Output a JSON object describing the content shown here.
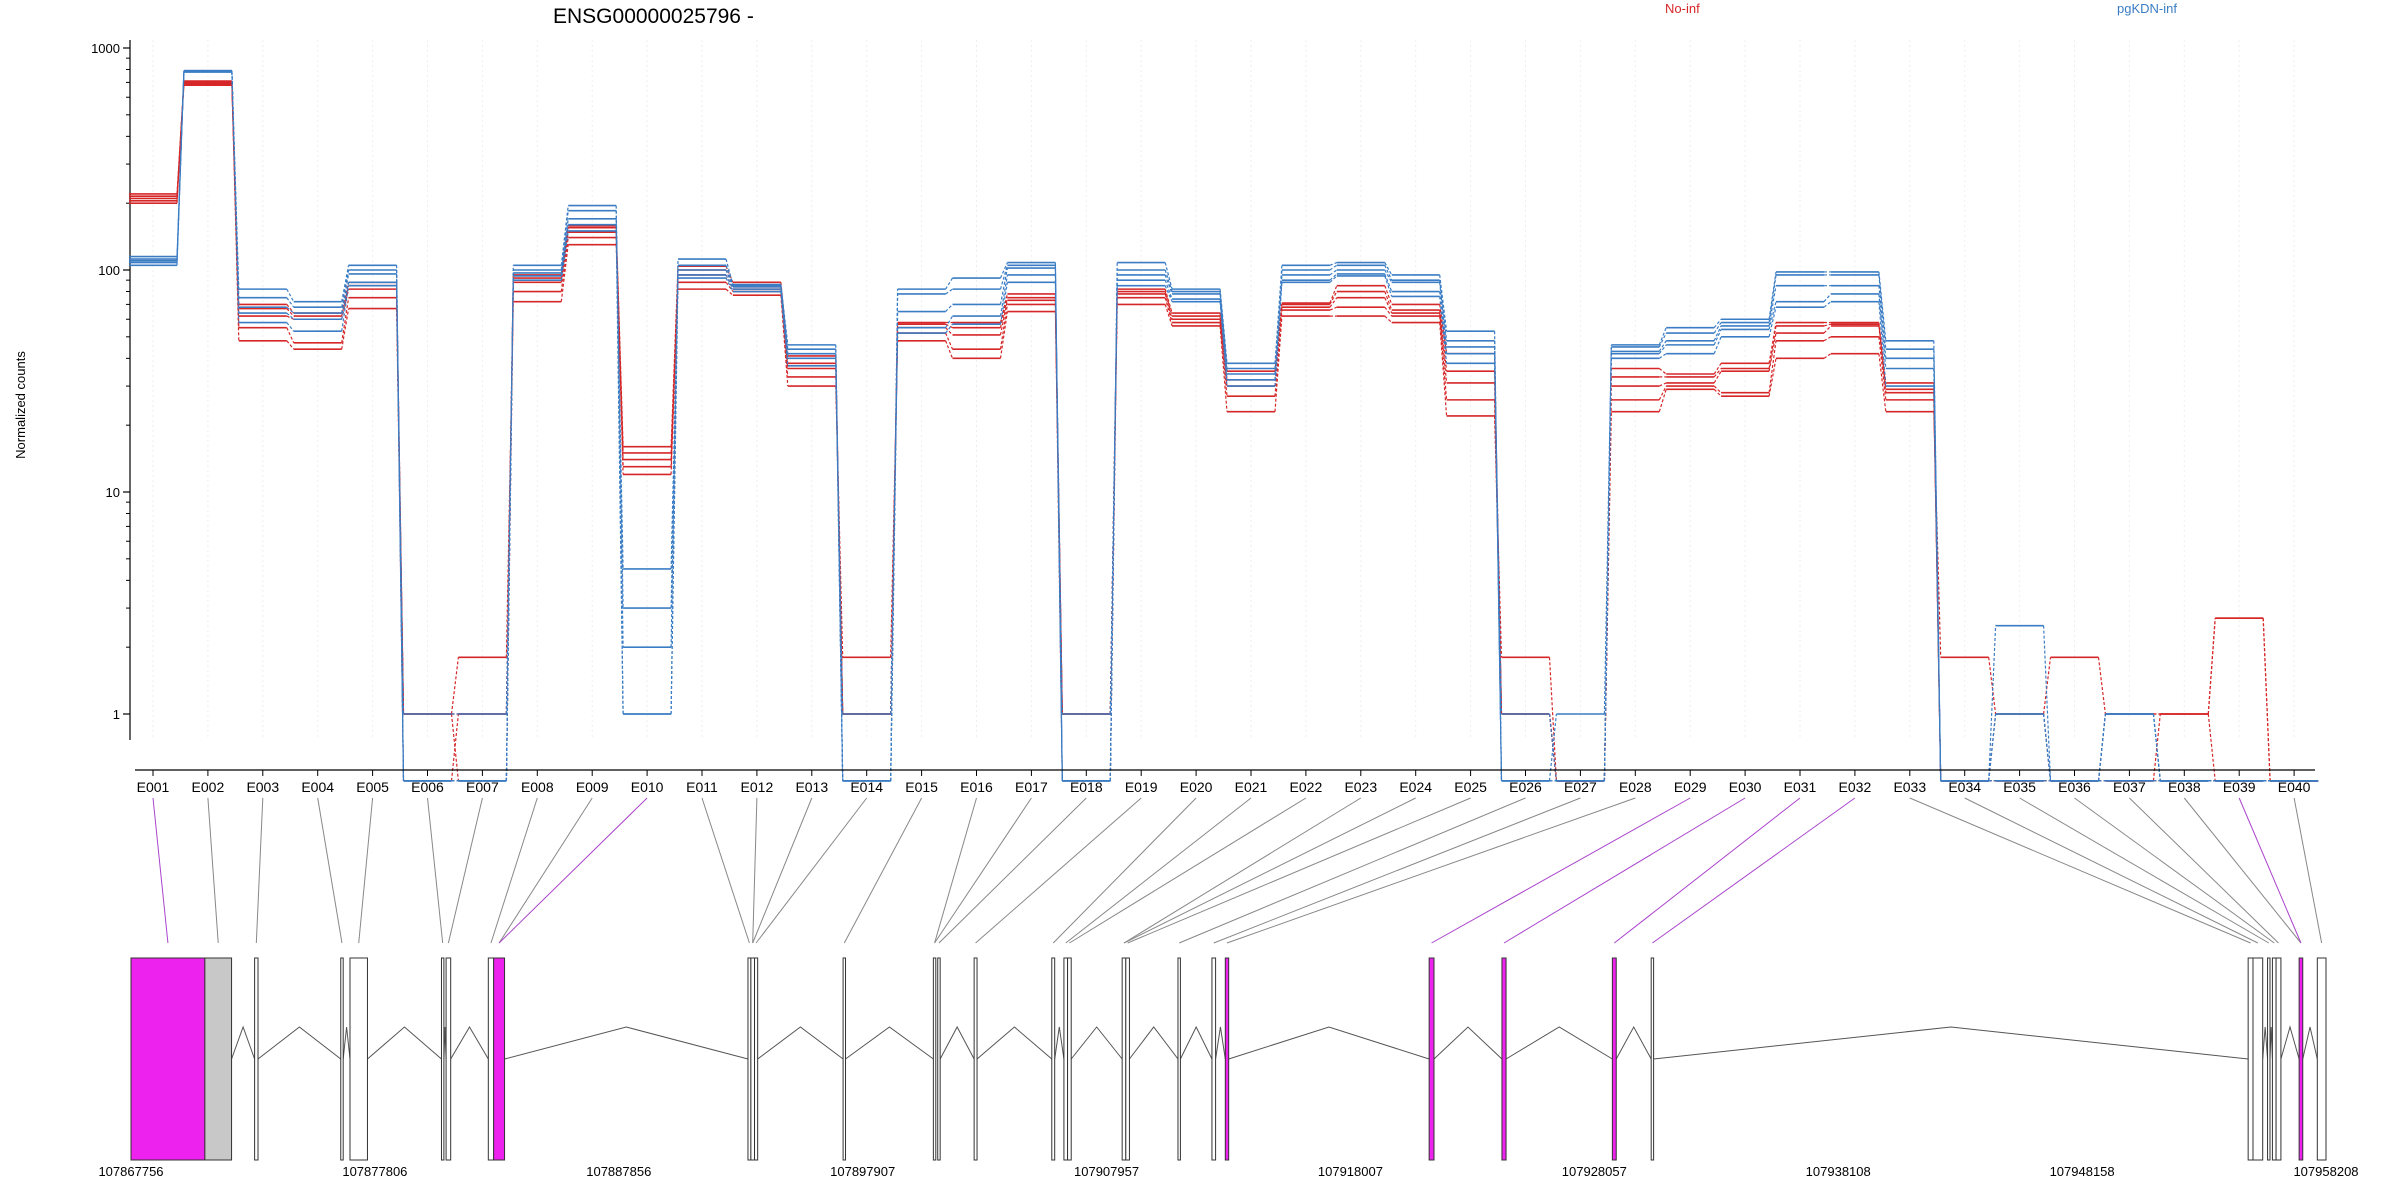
{
  "title": "ENSG00000025796 -",
  "legend": {
    "position": "top",
    "no_inf_label": "No-inf",
    "pgkdn_inf_label": "pgKDN-inf"
  },
  "colors": {
    "no_inf": "#d62728",
    "pgkdn_inf": "#3b7dc4",
    "significant_exon": "#ee22ee",
    "other_exon": "#c8c8c8",
    "connector_sig": "#aa44cc",
    "connector": "#888888"
  },
  "chart_data": {
    "type": "line",
    "title": "ENSG00000025796 -",
    "ylabel": "Normalized counts",
    "yscale": "log",
    "ylim": [
      0.5,
      1000
    ],
    "y_ticks": [
      "1",
      "10",
      "100",
      "1000"
    ],
    "grid": true,
    "categories": [
      "E001",
      "E002",
      "E003",
      "E004",
      "E005",
      "E006",
      "E007",
      "E008",
      "E009",
      "E010",
      "E011",
      "E012",
      "E013",
      "E014",
      "E015",
      "E016",
      "E017",
      "E018",
      "E019",
      "E020",
      "E021",
      "E022",
      "E023",
      "E024",
      "E025",
      "E026",
      "E027",
      "E028",
      "E029",
      "E030",
      "E031",
      "E032",
      "E033",
      "E034",
      "E035",
      "E036",
      "E037",
      "E038",
      "E039",
      "E040"
    ],
    "series": [
      {
        "group": "No-inf",
        "values": [
          215,
          700,
          48,
          44,
          67,
          1,
          1.8,
          72,
          130,
          14,
          82,
          77,
          30,
          1.8,
          48,
          40,
          65,
          1,
          70,
          56,
          23,
          62,
          62,
          58,
          22,
          1.8,
          0.5,
          23,
          29,
          27,
          40,
          42,
          23,
          1.8,
          1,
          1.8,
          1,
          1,
          2.7,
          0.5
        ]
      },
      {
        "group": "No-inf",
        "values": [
          205,
          690,
          55,
          47,
          75,
          1,
          0.5,
          80,
          140,
          12,
          88,
          80,
          33,
          1,
          52,
          44,
          70,
          1,
          75,
          58,
          27,
          66,
          68,
          62,
          26,
          1,
          0.5,
          26,
          30,
          28,
          48,
          50,
          26,
          0.5,
          1,
          0.5,
          1,
          1,
          2.7,
          0.5
        ]
      },
      {
        "group": "No-inf",
        "values": [
          200,
          680,
          62,
          60,
          82,
          0.5,
          1,
          88,
          148,
          13,
          95,
          82,
          36,
          1,
          55,
          51,
          73,
          0.5,
          78,
          60,
          30,
          68,
          75,
          64,
          31,
          1,
          0.5,
          30,
          31,
          35,
          52,
          56,
          28,
          0.5,
          0.5,
          0.5,
          0.5,
          1,
          0.5,
          0.5
        ]
      },
      {
        "group": "No-inf",
        "values": [
          210,
          705,
          67,
          62,
          85,
          1,
          1,
          92,
          155,
          15,
          100,
          84,
          38,
          1,
          57,
          55,
          75,
          1,
          80,
          62,
          32,
          70,
          80,
          66,
          35,
          1,
          0.5,
          33,
          33,
          36,
          56,
          57,
          29,
          0.5,
          0.5,
          0.5,
          0.5,
          0.5,
          0.5,
          0.5
        ]
      },
      {
        "group": "No-inf",
        "values": [
          220,
          710,
          70,
          64,
          88,
          1,
          1,
          95,
          158,
          16,
          104,
          88,
          41,
          1,
          58,
          58,
          78,
          1,
          82,
          64,
          35,
          71,
          85,
          70,
          42,
          1,
          0.5,
          36,
          34,
          38,
          58,
          58,
          31,
          0.5,
          0.5,
          0.5,
          0.5,
          0.5,
          0.5,
          0.5
        ]
      },
      {
        "group": "pgKDN-inf",
        "values": [
          105,
          780,
          82,
          72,
          105,
          0.5,
          0.5,
          105,
          195,
          1,
          112,
          86,
          46,
          0.5,
          82,
          92,
          108,
          0.5,
          108,
          82,
          38,
          105,
          108,
          95,
          53,
          0.5,
          0.5,
          46,
          55,
          60,
          98,
          98,
          48,
          0.5,
          2.5,
          0.5,
          1,
          0.5,
          0.5,
          0.5
        ]
      },
      {
        "group": "pgKDN-inf",
        "values": [
          108,
          790,
          75,
          68,
          100,
          0.5,
          0.5,
          100,
          185,
          2,
          105,
          85,
          44,
          0.5,
          78,
          82,
          105,
          0.5,
          100,
          80,
          36,
          100,
          105,
          90,
          48,
          0.5,
          1,
          45,
          52,
          58,
          95,
          95,
          44,
          0.5,
          1,
          0.5,
          1,
          0.5,
          0.5,
          0.5
        ]
      },
      {
        "group": "pgKDN-inf",
        "values": [
          110,
          780,
          68,
          64,
          96,
          0.5,
          0.5,
          97,
          170,
          3,
          100,
          84,
          42,
          0.5,
          65,
          70,
          102,
          0.5,
          95,
          78,
          34,
          95,
          100,
          88,
          45,
          0.5,
          0.5,
          43,
          48,
          56,
          85,
          85,
          40,
          0.5,
          1,
          0.5,
          1,
          0.5,
          0.5,
          0.5
        ]
      },
      {
        "group": "pgKDN-inf",
        "values": [
          115,
          785,
          64,
          60,
          88,
          0.5,
          0.5,
          94,
          160,
          4.5,
          95,
          82,
          40,
          0.5,
          55,
          62,
          95,
          0.5,
          90,
          74,
          32,
          90,
          96,
          80,
          42,
          0.5,
          0.5,
          42,
          46,
          54,
          72,
          78,
          36,
          0.5,
          0.5,
          0.5,
          0.5,
          0.5,
          0.5,
          0.5
        ]
      },
      {
        "group": "pgKDN-inf",
        "values": [
          112,
          790,
          58,
          53,
          85,
          1,
          1,
          90,
          150,
          1,
          92,
          80,
          37,
          1,
          52,
          57,
          88,
          1,
          85,
          72,
          30,
          88,
          94,
          76,
          38,
          1,
          0.5,
          40,
          42,
          50,
          68,
          72,
          30,
          0.5,
          0.5,
          0.5,
          0.5,
          0.5,
          0.5,
          0.5
        ]
      }
    ]
  },
  "gene_model": {
    "coord_labels": [
      "107867756",
      "107877806",
      "107887856",
      "107897907",
      "107907957",
      "107918007",
      "107928057",
      "107938108",
      "107948158",
      "107958208"
    ],
    "coord_range": [
      107867756,
      107958208
    ],
    "exons": [
      {
        "start": 107867756,
        "end": 107870800,
        "significant": true
      },
      {
        "start": 107870800,
        "end": 107871900,
        "significant": false
      },
      {
        "start": 107872850,
        "end": 107872990,
        "significant": false
      },
      {
        "start": 107876400,
        "end": 107876500,
        "significant": false
      },
      {
        "start": 107876780,
        "end": 107877500,
        "significant": false
      },
      {
        "start": 107880550,
        "end": 107880650,
        "significant": false
      },
      {
        "start": 107880740,
        "end": 107880930,
        "significant": false
      },
      {
        "start": 107882480,
        "end": 107882700,
        "significant": false
      },
      {
        "start": 107882700,
        "end": 107883150,
        "significant": true
      },
      {
        "start": 107893180,
        "end": 107893300,
        "significant": false
      },
      {
        "start": 107893300,
        "end": 107893450,
        "significant": false
      },
      {
        "start": 107893450,
        "end": 107893580,
        "significant": false
      },
      {
        "start": 107897100,
        "end": 107897200,
        "significant": false
      },
      {
        "start": 107900820,
        "end": 107900920,
        "significant": false
      },
      {
        "start": 107901000,
        "end": 107901100,
        "significant": false
      },
      {
        "start": 107902500,
        "end": 107902620,
        "significant": false
      },
      {
        "start": 107905700,
        "end": 107905820,
        "significant": false
      },
      {
        "start": 107906200,
        "end": 107906350,
        "significant": false
      },
      {
        "start": 107906350,
        "end": 107906500,
        "significant": false
      },
      {
        "start": 107908600,
        "end": 107908750,
        "significant": false
      },
      {
        "start": 107908750,
        "end": 107908900,
        "significant": false
      },
      {
        "start": 107910900,
        "end": 107911000,
        "significant": false
      },
      {
        "start": 107912300,
        "end": 107912450,
        "significant": false
      },
      {
        "start": 107912850,
        "end": 107912990,
        "significant": true
      },
      {
        "start": 107921250,
        "end": 107921450,
        "significant": true
      },
      {
        "start": 107924250,
        "end": 107924420,
        "significant": true
      },
      {
        "start": 107928800,
        "end": 107928960,
        "significant": true
      },
      {
        "start": 107930400,
        "end": 107930500,
        "significant": false
      },
      {
        "start": 107955000,
        "end": 107955200,
        "significant": false
      },
      {
        "start": 107955200,
        "end": 107955600,
        "significant": false
      },
      {
        "start": 107955800,
        "end": 107955900,
        "significant": false
      },
      {
        "start": 107956000,
        "end": 107956150,
        "significant": false
      },
      {
        "start": 107956150,
        "end": 107956350,
        "significant": false
      },
      {
        "start": 107957100,
        "end": 107957250,
        "significant": true
      },
      {
        "start": 107957850,
        "end": 107958208,
        "significant": false
      }
    ],
    "exon_for_category": [
      0,
      1,
      2,
      3,
      4,
      5,
      6,
      7,
      8,
      8,
      9,
      10,
      10,
      11,
      12,
      13,
      13,
      14,
      15,
      16,
      17,
      18,
      19,
      19,
      20,
      21,
      22,
      23,
      24,
      25,
      26,
      27,
      28,
      29,
      30,
      31,
      32,
      33,
      33,
      34
    ],
    "significant_categories": [
      "E001",
      "E010",
      "E029",
      "E030",
      "E031",
      "E032",
      "E039"
    ]
  }
}
